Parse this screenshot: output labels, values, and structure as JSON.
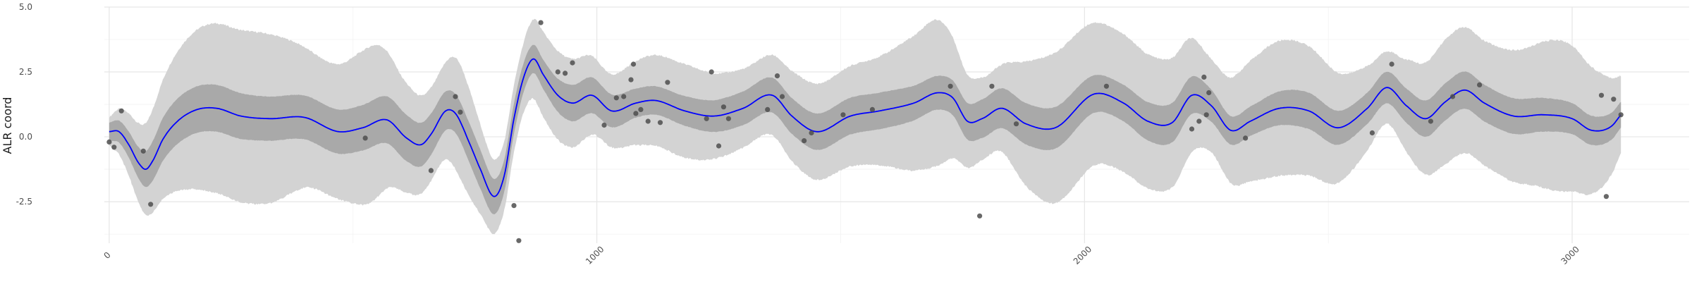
{
  "chart_data": {
    "type": "line",
    "title": "",
    "xlabel": "",
    "ylabel": "ALR coord",
    "xlim": [
      -10,
      3240
    ],
    "ylim": [
      -4.1,
      5.0
    ],
    "grid": true,
    "legend": "none",
    "x_ticks": [
      0,
      1000,
      2000,
      3000
    ],
    "x_tick_labels": [
      "0",
      "1000",
      "2000",
      "3000"
    ],
    "y_ticks": [
      -2.5,
      0.0,
      2.5,
      5.0
    ],
    "y_tick_labels": [
      "-2.5",
      "0.0",
      "2.5",
      "5.0"
    ],
    "colors": {
      "line": "#0000ff",
      "inner_band": "#a9a9a9",
      "outer_band": "#d3d3d3",
      "points": "#4d4d4d"
    },
    "series": [
      {
        "kind": "mean-line",
        "x": [
          0,
          20,
          40,
          60,
          75,
          90,
          110,
          140,
          180,
          220,
          270,
          330,
          400,
          470,
          520,
          570,
          610,
          640,
          660,
          690,
          710,
          740,
          760,
          790,
          810,
          830,
          850,
          870,
          890,
          920,
          950,
          990,
          1030,
          1080,
          1120,
          1180,
          1240,
          1300,
          1360,
          1400,
          1450,
          1520,
          1580,
          1650,
          1700,
          1730,
          1760,
          1790,
          1830,
          1880,
          1940,
          2020,
          2080,
          2130,
          2180,
          2220,
          2260,
          2300,
          2340,
          2400,
          2460,
          2520,
          2580,
          2620,
          2660,
          2700,
          2740,
          2780,
          2820,
          2880,
          2940,
          3000,
          3040,
          3080,
          3100
        ],
        "y": [
          0.2,
          0.2,
          -0.3,
          -1.0,
          -1.25,
          -0.9,
          -0.1,
          0.6,
          1.05,
          1.1,
          0.8,
          0.7,
          0.75,
          0.2,
          0.35,
          0.65,
          -0.05,
          -0.3,
          0.1,
          1.0,
          0.9,
          -0.3,
          -1.2,
          -2.3,
          -1.5,
          0.7,
          2.3,
          3.0,
          2.4,
          1.6,
          1.3,
          1.6,
          1.0,
          1.3,
          1.4,
          1.0,
          0.8,
          1.1,
          1.6,
          0.8,
          0.2,
          0.8,
          1.0,
          1.3,
          1.7,
          1.5,
          0.6,
          0.7,
          1.1,
          0.5,
          0.35,
          1.65,
          1.3,
          0.6,
          0.55,
          1.6,
          1.2,
          0.25,
          0.6,
          1.1,
          1.0,
          0.35,
          1.1,
          1.9,
          1.2,
          0.7,
          1.35,
          1.8,
          1.3,
          0.8,
          0.85,
          0.7,
          0.25,
          0.4,
          0.85
        ]
      },
      {
        "kind": "inner-band-halfwidth",
        "x": [
          0,
          40,
          100,
          200,
          330,
          470,
          600,
          690,
          760,
          820,
          880,
          950,
          1100,
          1300,
          1450,
          1600,
          1700,
          1800,
          1950,
          2050,
          2200,
          2300,
          2450,
          2600,
          2700,
          2850,
          3000,
          3100
        ],
        "h": [
          0.35,
          0.5,
          0.8,
          0.9,
          0.85,
          0.85,
          0.9,
          0.75,
          0.75,
          0.6,
          0.55,
          0.7,
          0.55,
          0.65,
          0.7,
          0.7,
          0.65,
          0.75,
          0.8,
          0.7,
          0.75,
          0.55,
          0.7,
          0.6,
          0.7,
          0.7,
          0.6,
          0.5
        ]
      },
      {
        "kind": "outer-band-halfwidth",
        "x": [
          0,
          40,
          90,
          150,
          200,
          250,
          330,
          420,
          470,
          540,
          600,
          680,
          720,
          780,
          840,
          880,
          950,
          1020,
          1100,
          1180,
          1260,
          1340,
          1420,
          1500,
          1580,
          1650,
          1700,
          1760,
          1820,
          1880,
          1940,
          2040,
          2120,
          2200,
          2260,
          2320,
          2400,
          2480,
          2560,
          2620,
          2680,
          2740,
          2820,
          2900,
          2980,
          3060,
          3100
        ],
        "h": [
          0.55,
          1.2,
          2.0,
          2.8,
          3.2,
          3.3,
          3.25,
          2.6,
          2.6,
          3.0,
          2.2,
          1.8,
          2.2,
          1.5,
          1.3,
          1.6,
          1.7,
          1.4,
          1.7,
          1.8,
          1.6,
          1.5,
          1.8,
          1.9,
          2.1,
          2.6,
          2.8,
          1.8,
          1.6,
          2.4,
          2.9,
          2.7,
          2.6,
          2.4,
          1.8,
          2.2,
          2.6,
          2.4,
          1.8,
          1.4,
          2.0,
          2.4,
          2.4,
          2.6,
          2.9,
          2.2,
          1.5
        ]
      },
      {
        "kind": "observations",
        "points": [
          [
            0,
            -0.2
          ],
          [
            10,
            -0.4
          ],
          [
            25,
            1.0
          ],
          [
            70,
            -0.55
          ],
          [
            85,
            -2.6
          ],
          [
            525,
            -0.05
          ],
          [
            660,
            -1.3
          ],
          [
            710,
            1.55
          ],
          [
            720,
            0.95
          ],
          [
            830,
            -2.65
          ],
          [
            840,
            -4.0
          ],
          [
            885,
            4.4
          ],
          [
            920,
            2.5
          ],
          [
            935,
            2.45
          ],
          [
            950,
            2.85
          ],
          [
            1015,
            0.45
          ],
          [
            1040,
            1.5
          ],
          [
            1055,
            1.55
          ],
          [
            1070,
            2.2
          ],
          [
            1075,
            2.8
          ],
          [
            1080,
            0.9
          ],
          [
            1090,
            1.05
          ],
          [
            1105,
            0.6
          ],
          [
            1130,
            0.55
          ],
          [
            1145,
            2.1
          ],
          [
            1225,
            0.7
          ],
          [
            1235,
            2.5
          ],
          [
            1250,
            -0.35
          ],
          [
            1260,
            1.15
          ],
          [
            1270,
            0.7
          ],
          [
            1350,
            1.05
          ],
          [
            1370,
            2.35
          ],
          [
            1380,
            1.55
          ],
          [
            1425,
            -0.15
          ],
          [
            1440,
            0.15
          ],
          [
            1505,
            0.85
          ],
          [
            1565,
            1.05
          ],
          [
            1725,
            1.95
          ],
          [
            1785,
            -3.05
          ],
          [
            1810,
            1.95
          ],
          [
            1860,
            0.5
          ],
          [
            2045,
            1.95
          ],
          [
            2220,
            0.3
          ],
          [
            2235,
            0.6
          ],
          [
            2245,
            2.3
          ],
          [
            2250,
            0.85
          ],
          [
            2255,
            1.7
          ],
          [
            2330,
            -0.05
          ],
          [
            2590,
            0.15
          ],
          [
            2630,
            2.8
          ],
          [
            2710,
            0.6
          ],
          [
            2755,
            1.55
          ],
          [
            2810,
            2.0
          ],
          [
            3060,
            1.6
          ],
          [
            3070,
            -2.3
          ],
          [
            3085,
            1.45
          ],
          [
            3100,
            0.85
          ]
        ]
      }
    ]
  }
}
